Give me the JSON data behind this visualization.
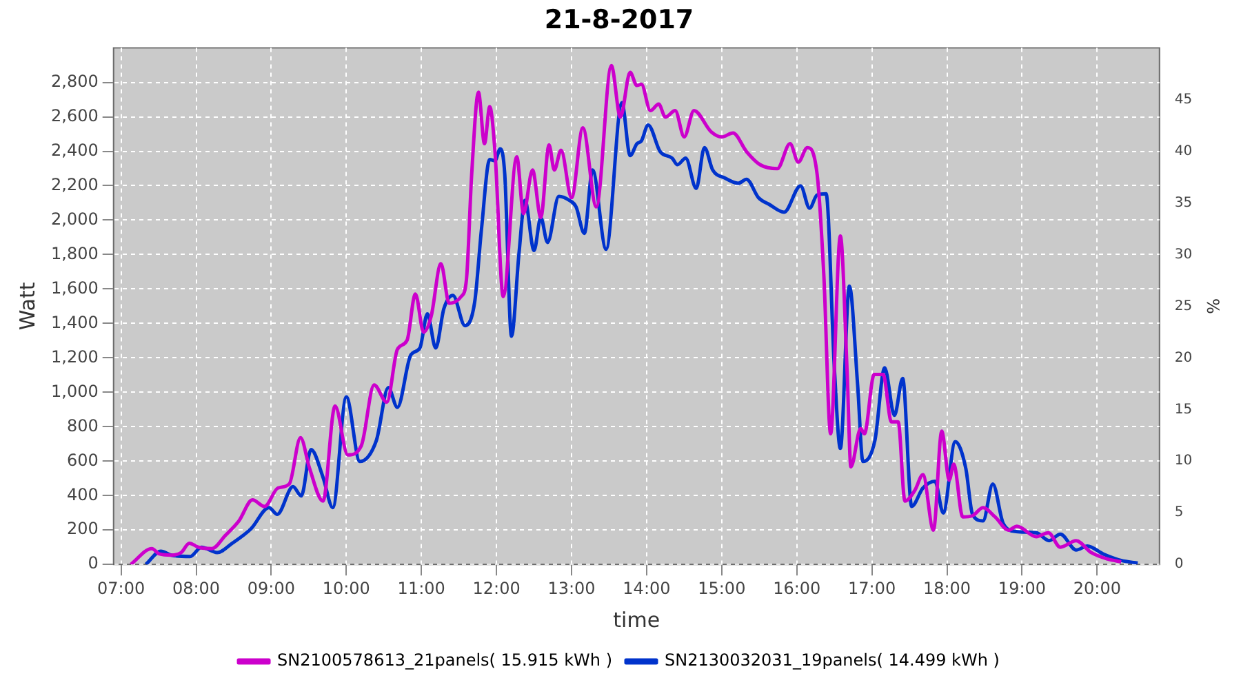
{
  "chart_data": {
    "type": "line",
    "title": "21-8-2017",
    "xlabel": "time",
    "ylabel": "Watt",
    "y2label": "%",
    "xlim": [
      6.9,
      20.83
    ],
    "xticks": [
      {
        "value": 7,
        "label": "07:00"
      },
      {
        "value": 8,
        "label": "08:00"
      },
      {
        "value": 9,
        "label": "09:00"
      },
      {
        "value": 10,
        "label": "10:00"
      },
      {
        "value": 11,
        "label": "11:00"
      },
      {
        "value": 12,
        "label": "12:00"
      },
      {
        "value": 13,
        "label": "13:00"
      },
      {
        "value": 14,
        "label": "14:00"
      },
      {
        "value": 15,
        "label": "15:00"
      },
      {
        "value": 16,
        "label": "16:00"
      },
      {
        "value": 17,
        "label": "17:00"
      },
      {
        "value": 18,
        "label": "18:00"
      },
      {
        "value": 19,
        "label": "19:00"
      },
      {
        "value": 20,
        "label": "20:00"
      }
    ],
    "ylim": [
      0,
      3000
    ],
    "yticks": [
      0,
      200,
      400,
      600,
      800,
      {
        "value": 1000,
        "label": "1,000"
      },
      {
        "value": 1200,
        "label": "1,200"
      },
      {
        "value": 1400,
        "label": "1,400"
      },
      {
        "value": 1600,
        "label": "1,600"
      },
      {
        "value": 1800,
        "label": "1,800"
      },
      {
        "value": 2000,
        "label": "2,000"
      },
      {
        "value": 2200,
        "label": "2,200"
      },
      {
        "value": 2400,
        "label": "2,400"
      },
      {
        "value": 2600,
        "label": "2,600"
      },
      {
        "value": 2800,
        "label": "2,800"
      }
    ],
    "y2lim": [
      0,
      50
    ],
    "y2ticks": [
      0,
      5,
      10,
      15,
      20,
      25,
      30,
      35,
      40,
      45
    ],
    "grid": true,
    "legend": "bottom",
    "marker": "none",
    "line_style": "solid",
    "series": [
      {
        "name": "SN2100578613_21panels( 15.915 kWh )",
        "color": "#cc00cc",
        "x": [
          7.13,
          7.41,
          7.51,
          7.67,
          7.8,
          7.91,
          8.03,
          8.21,
          8.39,
          8.57,
          8.75,
          8.91,
          9.09,
          9.24,
          9.39,
          9.51,
          9.69,
          9.85,
          10.02,
          10.2,
          10.37,
          10.54,
          10.68,
          10.81,
          10.92,
          11.03,
          11.13,
          11.26,
          11.37,
          11.53,
          11.6,
          11.67,
          11.76,
          11.84,
          11.91,
          11.98,
          12.09,
          12.27,
          12.36,
          12.48,
          12.59,
          12.7,
          12.77,
          12.86,
          13.0,
          13.15,
          13.33,
          13.53,
          13.65,
          13.78,
          13.87,
          13.93,
          14.05,
          14.16,
          14.25,
          14.38,
          14.5,
          14.63,
          14.86,
          15.0,
          15.15,
          15.33,
          15.51,
          15.74,
          15.91,
          16.02,
          16.14,
          16.27,
          16.36,
          16.45,
          16.58,
          16.67,
          16.72,
          16.85,
          16.9,
          17.03,
          17.15,
          17.26,
          17.35,
          17.44,
          17.57,
          17.68,
          17.82,
          17.93,
          18.03,
          18.09,
          18.21,
          18.34,
          18.48,
          18.64,
          18.82,
          18.93,
          19.19,
          19.35,
          19.51,
          19.72,
          19.92,
          20.14,
          20.32
        ],
        "values": [
          0,
          92,
          61,
          54,
          69,
          123,
          100,
          92,
          169,
          253,
          375,
          337,
          444,
          467,
          736,
          559,
          368,
          920,
          636,
          690,
          1042,
          942,
          1249,
          1303,
          1571,
          1349,
          1441,
          1747,
          1517,
          1556,
          1655,
          2268,
          2743,
          2444,
          2659,
          2398,
          1556,
          2368,
          2038,
          2291,
          2015,
          2437,
          2291,
          2406,
          2130,
          2536,
          2077,
          2897,
          2598,
          2858,
          2782,
          2789,
          2636,
          2674,
          2598,
          2636,
          2483,
          2636,
          2513,
          2483,
          2506,
          2398,
          2322,
          2299,
          2444,
          2337,
          2421,
          2268,
          1678,
          759,
          1908,
          1119,
          567,
          789,
          759,
          1103,
          1103,
          828,
          828,
          368,
          429,
          521,
          199,
          774,
          490,
          582,
          276,
          283,
          330,
          276,
          199,
          222,
          161,
          184,
          100,
          138,
          69,
          31,
          15
        ]
      },
      {
        "name": "SN2130032031_19panels( 14.499 kWh )",
        "color": "#0033cc",
        "x": [
          7.33,
          7.53,
          7.67,
          7.92,
          8.07,
          8.28,
          8.48,
          8.73,
          8.97,
          9.08,
          9.29,
          9.4,
          9.53,
          9.69,
          9.82,
          10.0,
          10.18,
          10.4,
          10.56,
          10.68,
          10.86,
          10.98,
          11.08,
          11.19,
          11.3,
          11.42,
          11.58,
          11.71,
          11.8,
          11.91,
          11.98,
          12.05,
          12.11,
          12.2,
          12.3,
          12.38,
          12.5,
          12.59,
          12.68,
          12.83,
          12.97,
          13.06,
          13.17,
          13.28,
          13.46,
          13.67,
          13.78,
          13.87,
          13.93,
          14.02,
          14.18,
          14.34,
          14.41,
          14.52,
          14.66,
          14.77,
          14.88,
          15.04,
          15.22,
          15.33,
          15.49,
          15.63,
          15.83,
          16.05,
          16.17,
          16.27,
          16.39,
          16.5,
          16.58,
          16.7,
          16.81,
          16.88,
          17.04,
          17.17,
          17.3,
          17.41,
          17.53,
          17.68,
          17.84,
          17.95,
          18.11,
          18.25,
          18.34,
          18.48,
          18.61,
          18.75,
          18.92,
          19.19,
          19.36,
          19.51,
          19.72,
          19.87,
          20.08,
          20.32,
          20.54
        ],
        "values": [
          0,
          77,
          54,
          46,
          100,
          69,
          123,
          207,
          330,
          291,
          452,
          398,
          667,
          506,
          330,
          973,
          598,
          720,
          1027,
          912,
          1218,
          1257,
          1456,
          1257,
          1487,
          1563,
          1387,
          1525,
          1946,
          2352,
          2345,
          2414,
          2268,
          1326,
          1808,
          2115,
          1824,
          2015,
          1870,
          2138,
          2115,
          2077,
          1923,
          2291,
          1831,
          2682,
          2375,
          2444,
          2460,
          2552,
          2398,
          2360,
          2322,
          2360,
          2184,
          2421,
          2291,
          2245,
          2214,
          2237,
          2130,
          2092,
          2046,
          2199,
          2069,
          2146,
          2153,
          1142,
          674,
          1617,
          1042,
          598,
          720,
          1142,
          866,
          1080,
          337,
          444,
          483,
          299,
          713,
          559,
          291,
          253,
          467,
          237,
          191,
          184,
          138,
          176,
          84,
          107,
          61,
          23,
          8
        ]
      }
    ]
  }
}
